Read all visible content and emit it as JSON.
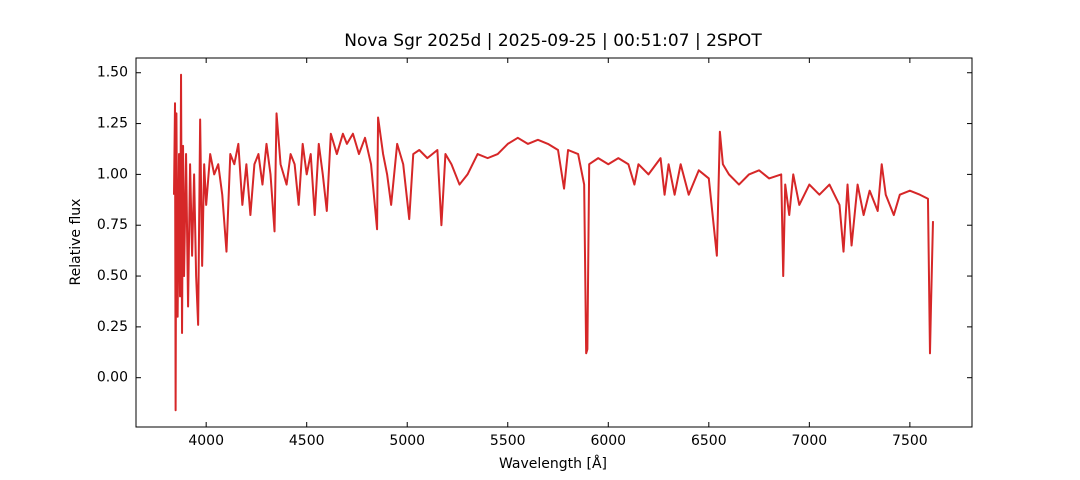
{
  "chart_data": {
    "type": "line",
    "title": "Nova Sgr 2025d | 2025-09-25 | 00:51:07 | 2SPOT",
    "x_label": "Wavelength [Å]",
    "y_label": "Relative flux",
    "xlim": [
      3651,
      7809
    ],
    "ylim": [
      -0.2425,
      1.5725
    ],
    "xticks": [
      4000,
      4500,
      5000,
      5500,
      6000,
      6500,
      7000,
      7500
    ],
    "yticks": [
      {
        "value": 0,
        "label": "0.00"
      },
      0.25,
      {
        "value": 0.5,
        "label": "0.50"
      },
      0.75,
      {
        "value": 1,
        "label": "1.00"
      },
      1.25,
      {
        "value": 1.5,
        "label": "1.50"
      }
    ],
    "grid": false,
    "series": [
      {
        "color": "#d62728",
        "x": [
          3840,
          3845,
          3848,
          3852,
          3858,
          3865,
          3870,
          3875,
          3880,
          3885,
          3890,
          3900,
          3910,
          3920,
          3930,
          3940,
          3950,
          3960,
          3970,
          3980,
          3990,
          4000,
          4020,
          4040,
          4060,
          4080,
          4101,
          4120,
          4140,
          4160,
          4180,
          4200,
          4220,
          4240,
          4260,
          4280,
          4300,
          4320,
          4340,
          4350,
          4370,
          4400,
          4420,
          4440,
          4460,
          4480,
          4500,
          4520,
          4540,
          4560,
          4580,
          4600,
          4620,
          4650,
          4680,
          4700,
          4730,
          4760,
          4790,
          4820,
          4850,
          4855,
          4880,
          4900,
          4920,
          4950,
          4980,
          5010,
          5030,
          5060,
          5100,
          5150,
          5170,
          5190,
          5220,
          5260,
          5300,
          5350,
          5400,
          5450,
          5500,
          5550,
          5600,
          5650,
          5700,
          5750,
          5780,
          5800,
          5850,
          5880,
          5890,
          5896,
          5905,
          5950,
          6000,
          6050,
          6100,
          6130,
          6150,
          6200,
          6260,
          6280,
          6300,
          6330,
          6360,
          6400,
          6450,
          6500,
          6540,
          6555,
          6570,
          6600,
          6650,
          6700,
          6750,
          6800,
          6860,
          6870,
          6880,
          6900,
          6920,
          6950,
          7000,
          7050,
          7100,
          7150,
          7170,
          7190,
          7210,
          7240,
          7270,
          7300,
          7340,
          7360,
          7380,
          7420,
          7450,
          7500,
          7550,
          7590,
          7600,
          7605,
          7615
        ],
        "values": [
          0.9,
          1.35,
          -0.16,
          1.3,
          0.3,
          1.1,
          0.4,
          1.49,
          0.22,
          1.14,
          0.5,
          1.1,
          0.35,
          1.05,
          0.6,
          1.0,
          0.5,
          0.26,
          1.27,
          0.55,
          1.05,
          0.85,
          1.1,
          1.0,
          1.05,
          0.9,
          0.62,
          1.1,
          1.05,
          1.15,
          0.85,
          1.05,
          0.8,
          1.05,
          1.1,
          0.95,
          1.15,
          1.0,
          0.72,
          1.3,
          1.05,
          0.95,
          1.1,
          1.05,
          0.85,
          1.15,
          1.0,
          1.1,
          0.8,
          1.15,
          1.0,
          0.82,
          1.2,
          1.1,
          1.2,
          1.15,
          1.2,
          1.1,
          1.18,
          1.05,
          0.73,
          1.28,
          1.1,
          1.0,
          0.85,
          1.15,
          1.05,
          0.78,
          1.1,
          1.12,
          1.08,
          1.12,
          0.75,
          1.1,
          1.05,
          0.95,
          1.0,
          1.1,
          1.08,
          1.1,
          1.15,
          1.18,
          1.15,
          1.17,
          1.15,
          1.12,
          0.93,
          1.12,
          1.1,
          0.95,
          0.12,
          0.14,
          1.05,
          1.08,
          1.05,
          1.08,
          1.05,
          0.95,
          1.05,
          1.0,
          1.08,
          0.9,
          1.05,
          0.9,
          1.05,
          0.9,
          1.02,
          0.98,
          0.6,
          1.21,
          1.05,
          1.0,
          0.95,
          1.0,
          1.02,
          0.98,
          1.0,
          0.5,
          0.95,
          0.8,
          1.0,
          0.85,
          0.95,
          0.9,
          0.95,
          0.85,
          0.62,
          0.95,
          0.65,
          0.95,
          0.8,
          0.92,
          0.82,
          1.05,
          0.9,
          0.8,
          0.9,
          0.92,
          0.9,
          0.88,
          0.12,
          0.35,
          0.77
        ]
      }
    ]
  }
}
